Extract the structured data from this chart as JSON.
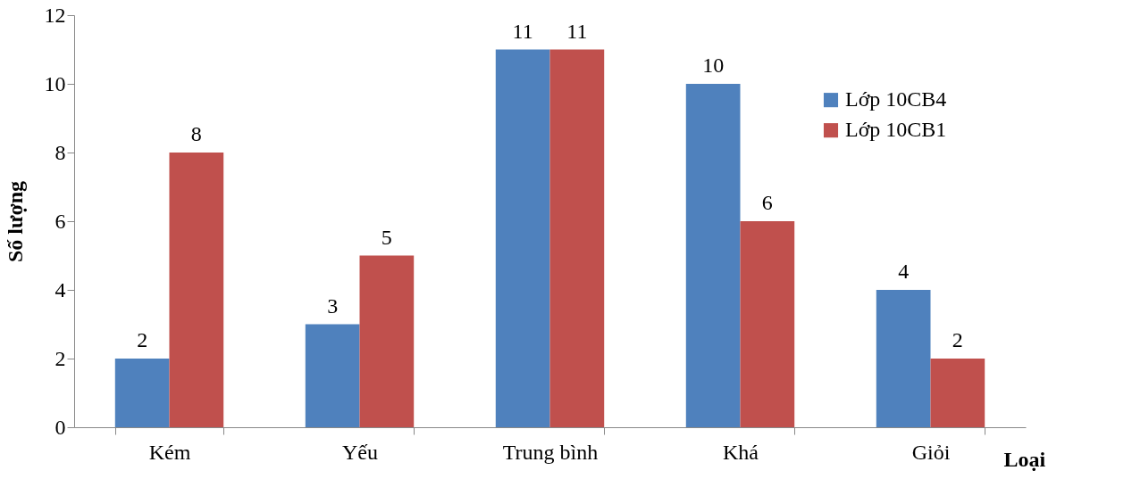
{
  "chart_data": {
    "type": "bar",
    "xlabel": "Loại",
    "ylabel": "Số lượng",
    "categories": [
      "Kém",
      "Yếu",
      "Trung bình",
      "Khá",
      "Giỏi"
    ],
    "series": [
      {
        "name": "Lớp 10CB4",
        "color": "#4f81bd",
        "values": [
          2,
          3,
          11,
          10,
          4
        ]
      },
      {
        "name": "Lớp 10CB1",
        "color": "#c0504d",
        "values": [
          8,
          5,
          11,
          6,
          2
        ]
      }
    ],
    "ylim": [
      0,
      12
    ],
    "yticks": [
      0,
      2,
      4,
      6,
      8,
      10,
      12
    ],
    "data_labels": true,
    "legend": "right",
    "grid": false
  }
}
